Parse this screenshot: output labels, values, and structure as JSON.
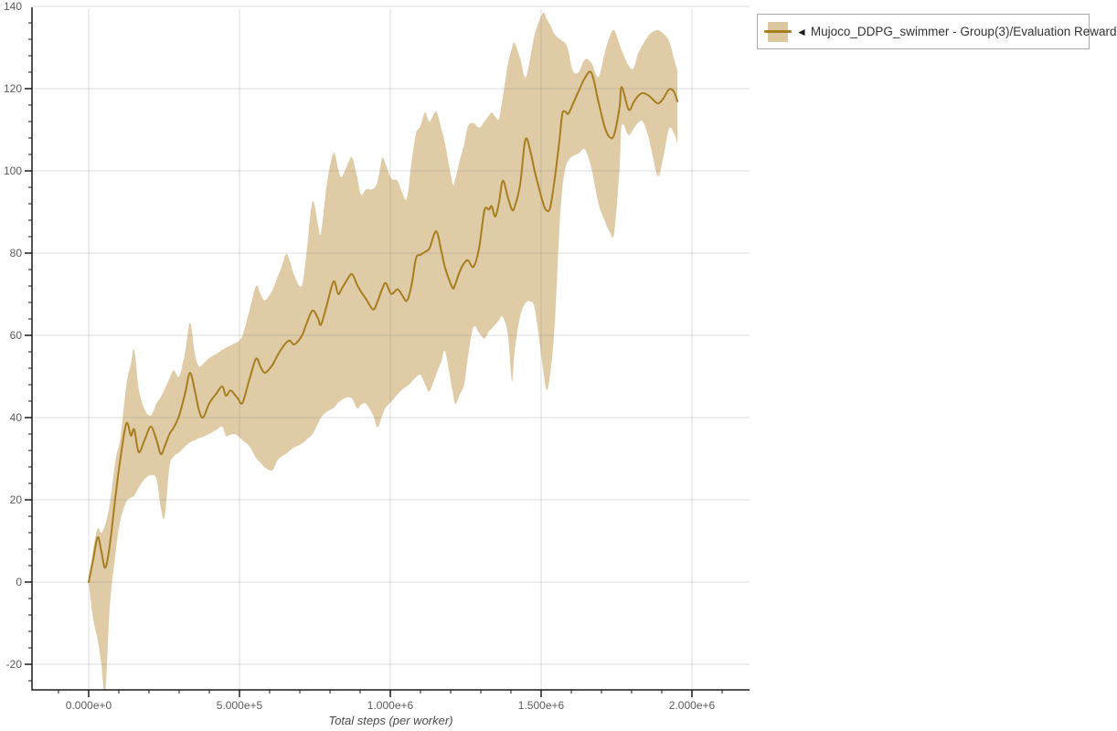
{
  "legend": {
    "marker": "◄",
    "label": "Mujoco_DDPG_swimmer - Group(3)/Evaluation Reward"
  },
  "colors": {
    "line": "#a87d1f",
    "band": "#dcc89e",
    "axis": "#1a1a1a",
    "grid": "#e3e3e3",
    "tick_text": "#5b5b5b"
  },
  "axes": {
    "x": {
      "title": "Total steps (per worker)",
      "tick_labels": [
        "0.000e+0",
        "5.000e+5",
        "1.000e+6",
        "1.500e+6",
        "2.000e+6"
      ],
      "tick_values_e6": [
        0,
        0.5,
        1.0,
        1.5,
        2.0
      ],
      "minor_step_e6": 0.1,
      "range_e6": [
        -0.19,
        2.19
      ]
    },
    "y": {
      "tick_labels": [
        "-20",
        "0",
        "20",
        "40",
        "60",
        "80",
        "100",
        "120",
        "140"
      ],
      "tick_values": [
        -20,
        0,
        20,
        40,
        60,
        80,
        100,
        120,
        140
      ],
      "minor_step": 4,
      "range": [
        -26,
        140
      ]
    }
  },
  "chart_data": {
    "type": "line",
    "title": "",
    "xlabel": "Total steps (per worker)",
    "ylabel": "",
    "x_unit": "1e6 steps",
    "ylim": [
      -26,
      140
    ],
    "grid": true,
    "legend_position": "top-right",
    "series": [
      {
        "name": "Mujoco_DDPG_swimmer - Group(3)/Evaluation Reward",
        "color": "#a87d1f",
        "band_color": "#dcc89e",
        "x_e6": [
          0.0,
          0.015,
          0.03,
          0.042,
          0.055,
          0.07,
          0.09,
          0.105,
          0.125,
          0.14,
          0.151,
          0.166,
          0.185,
          0.206,
          0.225,
          0.239,
          0.252,
          0.268,
          0.282,
          0.3,
          0.32,
          0.336,
          0.352,
          0.365,
          0.379,
          0.4,
          0.423,
          0.443,
          0.455,
          0.469,
          0.482,
          0.495,
          0.51,
          0.533,
          0.555,
          0.57,
          0.585,
          0.609,
          0.625,
          0.639,
          0.655,
          0.667,
          0.682,
          0.706,
          0.722,
          0.742,
          0.76,
          0.77,
          0.79,
          0.812,
          0.827,
          0.838,
          0.855,
          0.873,
          0.89,
          0.903,
          0.92,
          0.943,
          0.958,
          0.973,
          0.985,
          1.003,
          1.024,
          1.039,
          1.055,
          1.07,
          1.085,
          1.1,
          1.115,
          1.13,
          1.152,
          1.17,
          1.182,
          1.206,
          1.215,
          1.23,
          1.245,
          1.258,
          1.276,
          1.295,
          1.312,
          1.327,
          1.336,
          1.348,
          1.36,
          1.373,
          1.39,
          1.403,
          1.412,
          1.43,
          1.448,
          1.465,
          1.48,
          1.506,
          1.518,
          1.53,
          1.545,
          1.56,
          1.57,
          1.58,
          1.59,
          1.605,
          1.624,
          1.645,
          1.667,
          1.69,
          1.71,
          1.727,
          1.742,
          1.76,
          1.767,
          1.79,
          1.806,
          1.82,
          1.836,
          1.855,
          1.87,
          1.888,
          1.905,
          1.924,
          1.94,
          1.952
        ],
        "mean": [
          0.0,
          5.5,
          10.9,
          7.5,
          3.5,
          9.0,
          21.5,
          30.0,
          38.6,
          35.6,
          37.1,
          31.6,
          34.5,
          37.8,
          34.5,
          31.1,
          33.0,
          36.0,
          37.6,
          40.5,
          46.0,
          50.9,
          46.5,
          42.0,
          40.0,
          43.5,
          45.8,
          47.6,
          45.3,
          46.6,
          45.8,
          44.6,
          43.6,
          49.3,
          54.3,
          52.3,
          50.9,
          52.8,
          55.0,
          56.7,
          58.2,
          58.7,
          57.8,
          59.8,
          62.8,
          66.0,
          64.2,
          62.6,
          67.5,
          73.1,
          70.1,
          71.2,
          73.3,
          74.9,
          72.3,
          70.6,
          68.8,
          66.3,
          68.3,
          71.3,
          72.7,
          70.1,
          71.2,
          69.8,
          68.4,
          72.1,
          78.7,
          79.6,
          80.3,
          81.2,
          85.3,
          80.2,
          76.3,
          71.6,
          72.4,
          75.5,
          77.6,
          78.2,
          76.7,
          81.5,
          90.4,
          90.6,
          91.4,
          88.9,
          92.2,
          97.6,
          93.5,
          90.6,
          91.2,
          96.5,
          107.6,
          104.5,
          99.5,
          92.3,
          90.4,
          91.1,
          98.0,
          107.0,
          113.8,
          114.4,
          113.9,
          116.2,
          119.3,
          122.6,
          123.8,
          116.8,
          110.8,
          108.2,
          108.8,
          115.5,
          120.4,
          114.9,
          116.6,
          118.1,
          118.9,
          118.4,
          117.4,
          116.4,
          117.6,
          119.8,
          119.3,
          116.9
        ],
        "lower": [
          0.0,
          -9.0,
          -14.0,
          -20.0,
          -27.0,
          -6.0,
          7.5,
          15.0,
          19.5,
          20.5,
          21.0,
          23.0,
          25.0,
          26.0,
          25.0,
          18.0,
          16.0,
          28.0,
          30.5,
          31.5,
          33.0,
          34.0,
          34.5,
          35.0,
          35.3,
          36.0,
          37.0,
          37.8,
          35.5,
          35.8,
          36.0,
          35.5,
          34.5,
          33.0,
          30.2,
          29.0,
          27.8,
          27.2,
          29.5,
          30.5,
          31.2,
          32.0,
          32.8,
          33.6,
          34.6,
          36.0,
          38.5,
          40.0,
          41.5,
          42.3,
          43.6,
          44.2,
          44.9,
          44.6,
          42.2,
          43.1,
          43.3,
          40.5,
          37.6,
          40.5,
          42.5,
          43.8,
          45.6,
          46.8,
          47.6,
          48.6,
          49.8,
          50.4,
          48.2,
          46.4,
          50.5,
          53.8,
          56.0,
          46.5,
          43.3,
          45.5,
          48.2,
          55.0,
          62.0,
          60.5,
          59.2,
          61.0,
          61.6,
          62.6,
          63.6,
          64.5,
          60.0,
          48.9,
          56.0,
          64.5,
          67.8,
          68.2,
          66.0,
          52.0,
          46.7,
          50.5,
          62.5,
          85.0,
          95.5,
          100.5,
          102.5,
          103.6,
          104.2,
          105.2,
          100.5,
          92.0,
          88.0,
          85.2,
          84.9,
          100.5,
          111.1,
          108.7,
          110.2,
          111.6,
          112.0,
          108.5,
          103.5,
          98.7,
          103.2,
          110.2,
          109.2,
          106.7
        ],
        "upper": [
          0.5,
          8.0,
          13.0,
          12.0,
          14.0,
          19.0,
          30.0,
          35.0,
          48.0,
          53.0,
          56.5,
          47.0,
          42.0,
          40.5,
          43.5,
          45.0,
          47.0,
          49.5,
          51.5,
          50.0,
          56.0,
          63.1,
          55.5,
          52.5,
          53.0,
          54.5,
          55.5,
          56.5,
          57.0,
          57.5,
          58.0,
          58.5,
          60.0,
          66.0,
          72.0,
          70.0,
          68.5,
          71.0,
          74.0,
          76.5,
          79.8,
          78.0,
          74.5,
          72.0,
          80.0,
          92.5,
          87.0,
          85.0,
          97.0,
          104.4,
          100.5,
          98.5,
          101.0,
          103.3,
          98.5,
          94.2,
          95.5,
          95.6,
          97.5,
          103.1,
          101.5,
          98.2,
          97.6,
          94.8,
          93.3,
          102.0,
          109.0,
          110.9,
          114.2,
          112.0,
          114.4,
          110.0,
          106.5,
          97.1,
          98.0,
          102.5,
          106.5,
          110.9,
          111.6,
          110.5,
          112.0,
          113.5,
          114.2,
          113.2,
          112.7,
          118.0,
          126.0,
          129.8,
          131.1,
          127.5,
          122.7,
          128.0,
          133.5,
          138.4,
          137.0,
          135.5,
          133.2,
          132.2,
          131.6,
          131.1,
          129.3,
          124.4,
          124.0,
          127.1,
          126.2,
          122.8,
          128.5,
          132.6,
          134.2,
          130.8,
          129.3,
          125.6,
          124.9,
          128.2,
          130.6,
          132.8,
          133.8,
          134.2,
          133.4,
          131.6,
          127.4,
          124.3
        ]
      }
    ]
  }
}
